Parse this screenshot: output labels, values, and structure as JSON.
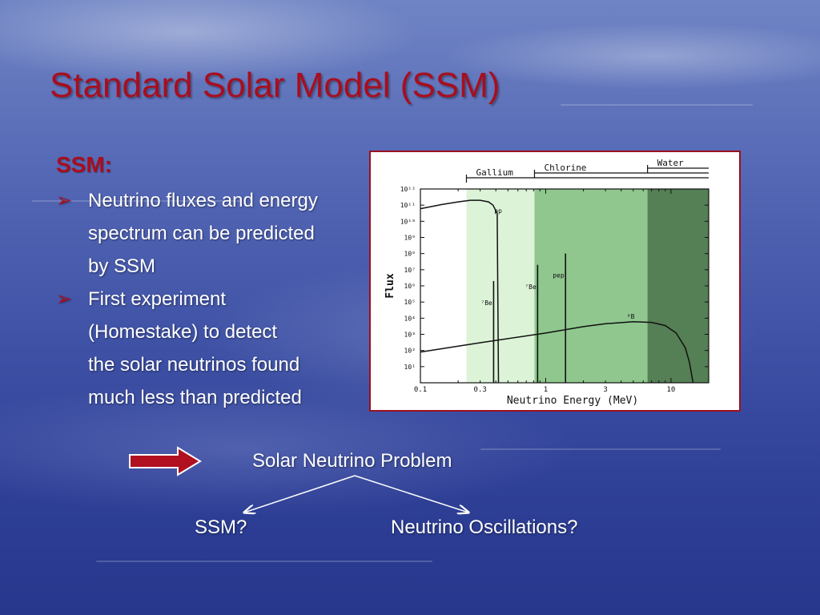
{
  "slide": {
    "title": "Standard Solar Model (SSM)",
    "subheading": "SSM:",
    "bullets": [
      {
        "marker": "➢",
        "lines": [
          "Neutrino fluxes and energy",
          "spectrum can be predicted",
          "by SSM"
        ]
      },
      {
        "marker": "➢",
        "lines": [
          "First experiment",
          "(Homestake) to detect",
          "the solar neutrinos found",
          "much less than predicted"
        ]
      }
    ],
    "conclusion": "Solar Neutrino Problem",
    "options": [
      "SSM?",
      "Neutrino Oscillations?"
    ],
    "colors": {
      "title": "#a80e1e",
      "text": "#ffffff",
      "arrow": "#b01020"
    }
  },
  "chart_data": {
    "type": "line",
    "xlabel": "Neutrino Energy (MeV)",
    "ylabel": "Flux",
    "x_scale": "log",
    "xlim": [
      0.1,
      20
    ],
    "x_ticks": [
      "0.1",
      "0.3",
      "1",
      "3",
      "10"
    ],
    "y_scale": "log",
    "y_ticks": [
      "10¹²",
      "10¹¹",
      "10¹⁰",
      "10⁹",
      "10⁸",
      "10⁷",
      "10⁶",
      "10⁵",
      "10⁴",
      "10³",
      "10²",
      "10¹"
    ],
    "ylim": [
      1,
      1000000000000
    ],
    "detector_ranges": [
      {
        "name": "Gallium",
        "from": 0.233,
        "to": 20,
        "color": "#dcf3d8"
      },
      {
        "name": "Chlorine",
        "from": 0.814,
        "to": 20,
        "color": "#8fc78e"
      },
      {
        "name": "Water",
        "from": 6.5,
        "to": 20,
        "color": "#557f55"
      }
    ],
    "series": [
      {
        "name": "pp",
        "kind": "continuum",
        "x": [
          0.1,
          0.15,
          0.2,
          0.25,
          0.3,
          0.35,
          0.38,
          0.41,
          0.42
        ],
        "y": [
          60000000000,
          110000000000,
          160000000000,
          200000000000,
          200000000000,
          160000000000,
          100000000000,
          30000000000,
          1
        ]
      },
      {
        "name": "⁷Be",
        "kind": "line",
        "x": [
          0.384,
          0.862
        ],
        "y": [
          2000000,
          20000000
        ]
      },
      {
        "name": "pep",
        "kind": "line",
        "x": [
          1.44
        ],
        "y": [
          100000000
        ]
      },
      {
        "name": "⁸B",
        "kind": "continuum",
        "x": [
          0.1,
          0.3,
          1,
          2,
          3,
          5,
          7,
          9,
          11,
          13,
          14,
          15
        ],
        "y": [
          80,
          300,
          1200,
          3000,
          4500,
          6000,
          5500,
          3500,
          1200,
          150,
          20,
          1
        ]
      }
    ]
  }
}
